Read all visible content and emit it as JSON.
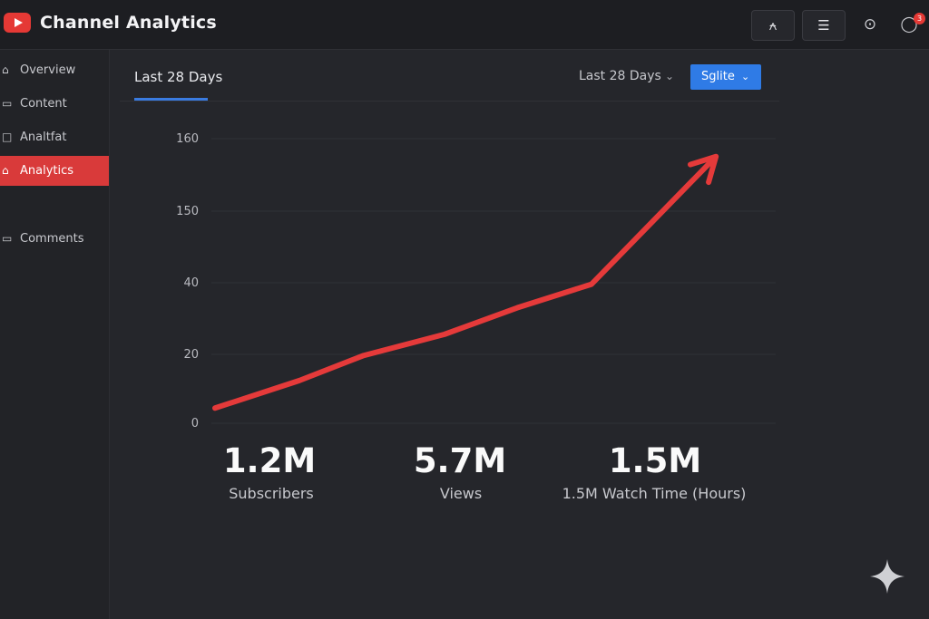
{
  "header": {
    "title": "Channel Analytics",
    "btn1_glyph": "⍲",
    "btn2_glyph": "☰",
    "settings_glyph": "⊙",
    "chat_glyph": "◯",
    "notif_count": "3"
  },
  "sidebar": {
    "items": [
      {
        "label": "Overview",
        "icon": "home-icon",
        "glyph": "⌂"
      },
      {
        "label": "Content",
        "icon": "monitor-icon",
        "glyph": "▭"
      },
      {
        "label": "Analtfat",
        "icon": "square-icon",
        "glyph": "□"
      },
      {
        "label": "Analytics",
        "icon": "home-icon",
        "glyph": "⌂",
        "active": true
      },
      {
        "label": "Comments",
        "icon": "comment-icon",
        "glyph": "▭"
      }
    ]
  },
  "main": {
    "tab_label": "Last 28 Days",
    "range_select": "Last 28 Days",
    "action_button": "Sglite"
  },
  "chart_data": {
    "type": "line",
    "ytick_labels": [
      "0",
      "20",
      "40",
      "150",
      "160"
    ],
    "values": [
      0.22,
      0.62,
      0.98,
      1.28,
      1.65,
      1.98,
      3.7
    ],
    "arrow_end": true,
    "color": "#e53a3a",
    "grid": true
  },
  "metrics": [
    {
      "value": "1.2M",
      "label": "Subscribers"
    },
    {
      "value": "5.7M",
      "label": "Views"
    },
    {
      "value": "1.5M",
      "label": "1.5M Watch Time (Hours)"
    }
  ],
  "colors": {
    "background": "#25262b",
    "accent_red": "#e53a3a",
    "accent_blue": "#2f7be6"
  }
}
